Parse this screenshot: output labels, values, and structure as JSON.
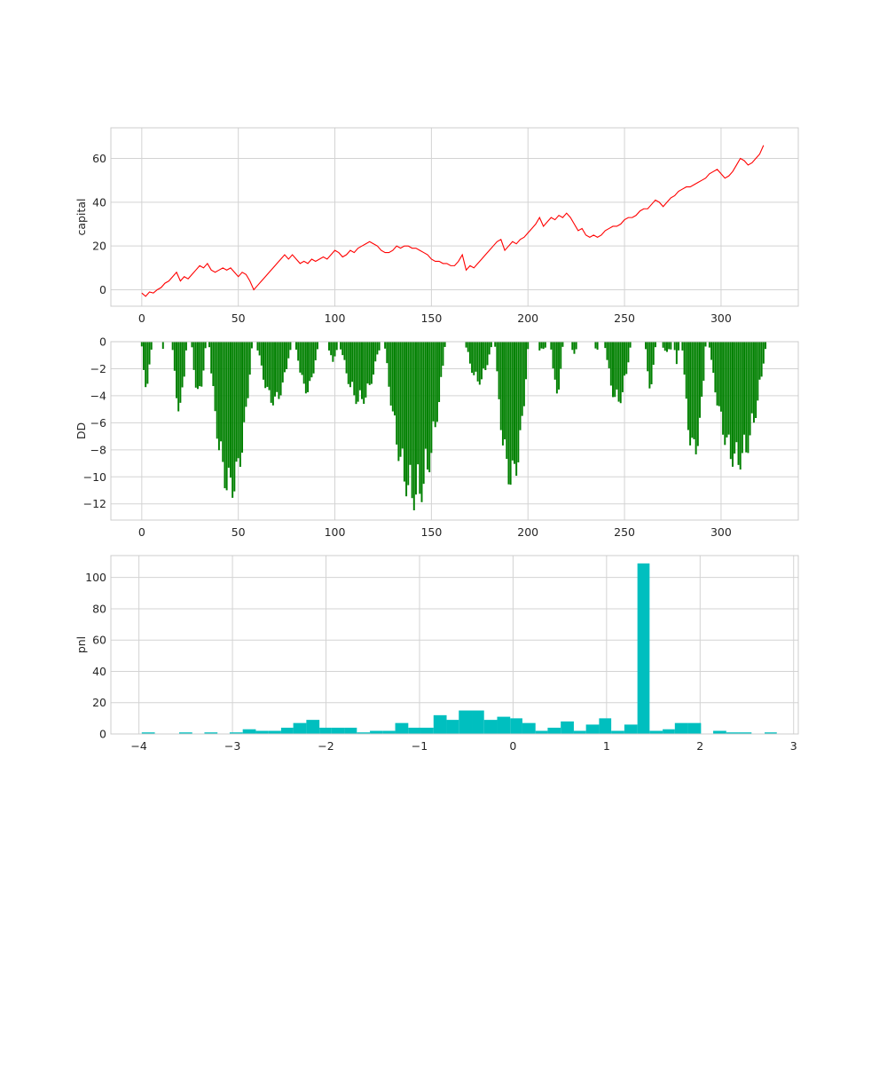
{
  "chart_data": [
    {
      "type": "line",
      "ylabel": "capital",
      "xlim": [
        -16,
        340
      ],
      "ylim": [
        -7.5,
        74
      ],
      "xticks": [
        0,
        50,
        100,
        150,
        200,
        250,
        300
      ],
      "yticks": [
        0,
        20,
        40,
        60
      ],
      "grid": true,
      "color": "#ff0000",
      "series": [
        {
          "x": [
            0,
            2,
            4,
            6,
            8,
            10,
            12,
            14,
            16,
            18,
            20,
            22,
            24,
            26,
            28,
            30,
            32,
            34,
            36,
            38,
            40,
            42,
            44,
            46,
            48,
            50,
            52,
            54,
            56,
            58,
            60,
            62,
            64,
            66,
            68,
            70,
            72,
            74,
            76,
            78,
            80,
            82,
            84,
            86,
            88,
            90,
            92,
            94,
            96,
            98,
            100,
            102,
            104,
            106,
            108,
            110,
            112,
            114,
            116,
            118,
            120,
            122,
            124,
            126,
            128,
            130,
            132,
            134,
            136,
            138,
            140,
            142,
            144,
            146,
            148,
            150,
            152,
            154,
            156,
            158,
            160,
            162,
            164,
            166,
            168,
            170,
            172,
            174,
            176,
            178,
            180,
            182,
            184,
            186,
            188,
            190,
            192,
            194,
            196,
            198,
            200,
            202,
            204,
            206,
            208,
            210,
            212,
            214,
            216,
            218,
            220,
            222,
            224,
            226,
            228,
            230,
            232,
            234,
            236,
            238,
            240,
            242,
            244,
            246,
            248,
            250,
            252,
            254,
            256,
            258,
            260,
            262,
            264,
            266,
            268,
            270,
            272,
            274,
            276,
            278,
            280,
            282,
            284,
            286,
            288,
            290,
            292,
            294,
            296,
            298,
            300,
            302,
            304,
            306,
            308,
            310,
            312,
            314,
            316,
            318,
            320,
            322
          ],
          "values": [
            -1.5,
            -3,
            -1,
            -1.5,
            0,
            1,
            3,
            4,
            6,
            8,
            4,
            6,
            5,
            7,
            9,
            11,
            10,
            12,
            9,
            8,
            9,
            10,
            9,
            10,
            8,
            6,
            8,
            7,
            4,
            0,
            2,
            4,
            6,
            8,
            10,
            12,
            14,
            16,
            14,
            16,
            14,
            12,
            13,
            12,
            14,
            13,
            14,
            15,
            14,
            16,
            18,
            17,
            15,
            16,
            18,
            17,
            19,
            20,
            21,
            22,
            21,
            20,
            18,
            17,
            17,
            18,
            20,
            19,
            20,
            20,
            19,
            19,
            18,
            17,
            16,
            14,
            13,
            13,
            12,
            12,
            11,
            11,
            13,
            16,
            9,
            11,
            10,
            12,
            14,
            16,
            18,
            20,
            22,
            23,
            18,
            20,
            22,
            21,
            23,
            24,
            26,
            28,
            30,
            33,
            29,
            31,
            33,
            32,
            34,
            33,
            35,
            33,
            30,
            27,
            28,
            25,
            24,
            25,
            24,
            25,
            27,
            28,
            29,
            29,
            30,
            32,
            33,
            33,
            34,
            36,
            37,
            37,
            39,
            41,
            40,
            38,
            40,
            42,
            43,
            45,
            46,
            47,
            47,
            48,
            49,
            50,
            51,
            53,
            54,
            55,
            53,
            51,
            52,
            54,
            57,
            60,
            59,
            57,
            58,
            60,
            62,
            66
          ]
        }
      ]
    },
    {
      "type": "bar",
      "ylabel": "DD",
      "xlim": [
        -16,
        340
      ],
      "ylim": [
        -13.2,
        0
      ],
      "xticks": [
        0,
        50,
        100,
        150,
        200,
        250,
        300
      ],
      "yticks": [
        0,
        -2,
        -4,
        -6,
        -8,
        -10,
        -12
      ],
      "grid": true,
      "color": "#008000",
      "segments": [
        {
          "start": 0,
          "end": 6,
          "min": -3.5
        },
        {
          "start": 11,
          "end": 12,
          "min": -0.6
        },
        {
          "start": 16,
          "end": 24,
          "min": -5.3
        },
        {
          "start": 26,
          "end": 34,
          "min": -4.2
        },
        {
          "start": 35,
          "end": 58,
          "min": -11.8
        },
        {
          "start": 60,
          "end": 78,
          "min": -4.8
        },
        {
          "start": 80,
          "end": 92,
          "min": -3.9
        },
        {
          "start": 97,
          "end": 102,
          "min": -1.5
        },
        {
          "start": 103,
          "end": 124,
          "min": -4.8
        },
        {
          "start": 126,
          "end": 158,
          "min": -12.5
        },
        {
          "start": 168,
          "end": 182,
          "min": -3.2
        },
        {
          "start": 183,
          "end": 201,
          "min": -11.0
        },
        {
          "start": 206,
          "end": 210,
          "min": -0.6
        },
        {
          "start": 212,
          "end": 219,
          "min": -4.0
        },
        {
          "start": 223,
          "end": 226,
          "min": -1.2
        },
        {
          "start": 235,
          "end": 237,
          "min": -0.8
        },
        {
          "start": 240,
          "end": 254,
          "min": -4.8
        },
        {
          "start": 261,
          "end": 267,
          "min": -3.6
        },
        {
          "start": 270,
          "end": 275,
          "min": -0.9
        },
        {
          "start": 276,
          "end": 279,
          "min": -1.9
        },
        {
          "start": 280,
          "end": 293,
          "min": -8.8
        },
        {
          "start": 294,
          "end": 324,
          "min": -9.6
        }
      ]
    },
    {
      "type": "bar",
      "subtype": "histogram",
      "ylabel": "pnl",
      "xlim": [
        -4.3,
        3.05
      ],
      "ylim": [
        0,
        114
      ],
      "xticks": [
        -4,
        -3,
        -2,
        -1,
        0,
        1,
        2,
        3
      ],
      "xticklabels": [
        "−4",
        "−3",
        "−2",
        "−1",
        "0",
        "1",
        "2",
        "3"
      ],
      "yticks": [
        0,
        20,
        40,
        60,
        80,
        100
      ],
      "grid": true,
      "color": "#00bfbf",
      "bins": [
        {
          "x0": -3.97,
          "x1": -3.83,
          "count": 1
        },
        {
          "x0": -3.57,
          "x1": -3.43,
          "count": 1
        },
        {
          "x0": -3.3,
          "x1": -3.16,
          "count": 1
        },
        {
          "x0": -3.03,
          "x1": -2.89,
          "count": 1
        },
        {
          "x0": -2.89,
          "x1": -2.75,
          "count": 3
        },
        {
          "x0": -2.75,
          "x1": -2.62,
          "count": 2
        },
        {
          "x0": -2.62,
          "x1": -2.48,
          "count": 2
        },
        {
          "x0": -2.48,
          "x1": -2.35,
          "count": 4
        },
        {
          "x0": -2.35,
          "x1": -2.21,
          "count": 7
        },
        {
          "x0": -2.21,
          "x1": -2.07,
          "count": 9
        },
        {
          "x0": -2.07,
          "x1": -1.94,
          "count": 4
        },
        {
          "x0": -1.94,
          "x1": -1.8,
          "count": 4
        },
        {
          "x0": -1.8,
          "x1": -1.67,
          "count": 4
        },
        {
          "x0": -1.67,
          "x1": -1.53,
          "count": 1
        },
        {
          "x0": -1.53,
          "x1": -1.39,
          "count": 2
        },
        {
          "x0": -1.39,
          "x1": -1.26,
          "count": 2
        },
        {
          "x0": -1.26,
          "x1": -1.12,
          "count": 7
        },
        {
          "x0": -1.12,
          "x1": -0.99,
          "count": 4
        },
        {
          "x0": -0.99,
          "x1": -0.85,
          "count": 4
        },
        {
          "x0": -0.85,
          "x1": -0.71,
          "count": 12
        },
        {
          "x0": -0.71,
          "x1": -0.58,
          "count": 9
        },
        {
          "x0": -0.58,
          "x1": -0.44,
          "count": 15
        },
        {
          "x0": -0.44,
          "x1": -0.31,
          "count": 15
        },
        {
          "x0": -0.31,
          "x1": -0.17,
          "count": 9
        },
        {
          "x0": -0.17,
          "x1": -0.03,
          "count": 11
        },
        {
          "x0": -0.03,
          "x1": 0.1,
          "count": 10
        },
        {
          "x0": 0.1,
          "x1": 0.24,
          "count": 7
        },
        {
          "x0": 0.24,
          "x1": 0.37,
          "count": 2
        },
        {
          "x0": 0.37,
          "x1": 0.51,
          "count": 4
        },
        {
          "x0": 0.51,
          "x1": 0.65,
          "count": 8
        },
        {
          "x0": 0.65,
          "x1": 0.78,
          "count": 2
        },
        {
          "x0": 0.78,
          "x1": 0.92,
          "count": 6
        },
        {
          "x0": 0.92,
          "x1": 1.05,
          "count": 10
        },
        {
          "x0": 1.05,
          "x1": 1.19,
          "count": 2
        },
        {
          "x0": 1.19,
          "x1": 1.33,
          "count": 6
        },
        {
          "x0": 1.33,
          "x1": 1.46,
          "count": 109
        },
        {
          "x0": 1.46,
          "x1": 1.6,
          "count": 2
        },
        {
          "x0": 1.6,
          "x1": 1.73,
          "count": 3
        },
        {
          "x0": 1.73,
          "x1": 1.87,
          "count": 7
        },
        {
          "x0": 1.87,
          "x1": 2.01,
          "count": 7
        },
        {
          "x0": 2.14,
          "x1": 2.28,
          "count": 2
        },
        {
          "x0": 2.28,
          "x1": 2.41,
          "count": 1
        },
        {
          "x0": 2.41,
          "x1": 2.55,
          "count": 1
        },
        {
          "x0": 2.69,
          "x1": 2.82,
          "count": 1
        }
      ]
    }
  ]
}
